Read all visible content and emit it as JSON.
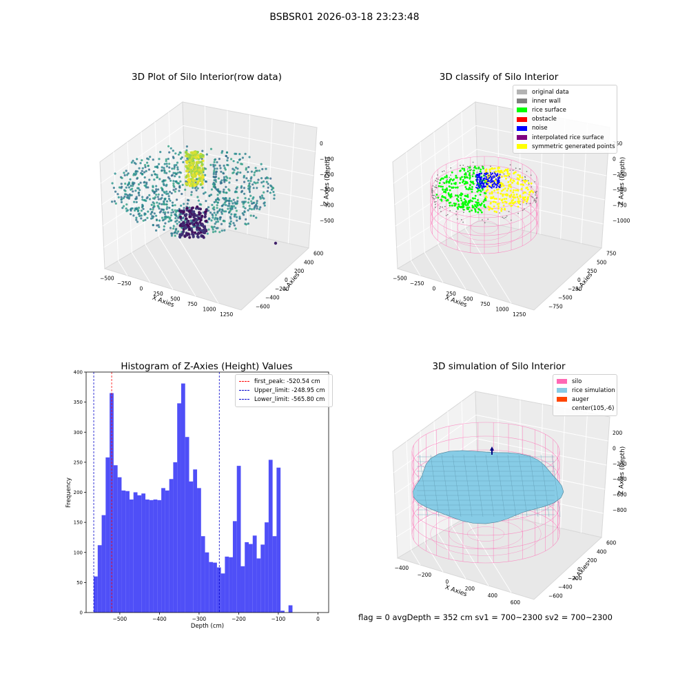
{
  "page": {
    "suptitle": "BSBSR01 2026-03-18 23:23:48",
    "footer": "flag = 0     avgDepth = 352 cm  sv1 = 700~2300  sv2 = 700~2300"
  },
  "colors": {
    "hist_bar": "#4f4ff7",
    "first_peak": "#ff0000",
    "limits": "#0000cc",
    "silo_wire": "#ff69b4",
    "rice": "#87cce6",
    "auger": "#ff4500",
    "pane": "#f2f2f2"
  },
  "chart_data": [
    {
      "type": "scatter3d",
      "title": "3D Plot of Silo Interior(row data)",
      "xlabel": "X Axies",
      "ylabel": "Y Axies",
      "zlabel": "Z Axies (Depth)",
      "x_ticks": [
        "−500",
        "−250",
        "0",
        "250",
        "500",
        "750",
        "1000",
        "1250"
      ],
      "y_ticks": [
        "−600",
        "−400",
        "−200",
        "0",
        "200",
        "400",
        "600"
      ],
      "z_ticks": [
        "−500",
        "−400",
        "−300",
        "−200",
        "−100",
        "0"
      ],
      "colormap": "viridis",
      "note": "point cloud colored by depth"
    },
    {
      "type": "scatter3d",
      "title": "3D classify of Silo Interior",
      "xlabel": "X Axies",
      "ylabel": "Y Axies",
      "zlabel": "Z Axies (Depth)",
      "x_ticks": [
        "−500",
        "−250",
        "0",
        "250",
        "500",
        "750",
        "1000",
        "1250"
      ],
      "y_ticks": [
        "−750",
        "−500",
        "−250",
        "0",
        "250",
        "500",
        "750"
      ],
      "z_ticks": [
        "−1000",
        "−750",
        "−500",
        "−250",
        "0",
        "250"
      ],
      "legend_position": "top-right",
      "legend": [
        {
          "name": "original data",
          "color": "#b3b3b3"
        },
        {
          "name": "inner wall",
          "color": "#808080"
        },
        {
          "name": "rice surface",
          "color": "#00ff00"
        },
        {
          "name": "obstacle",
          "color": "#ff0000"
        },
        {
          "name": "noise",
          "color": "#0000ff"
        },
        {
          "name": "interpolated rice surface",
          "color": "#800080"
        },
        {
          "name": "symmetric generated points",
          "color": "#ffff00"
        }
      ]
    },
    {
      "type": "bar",
      "title": "Histogram of Z-Axies (Height) Values",
      "xlabel": "Depth (cm)",
      "ylabel": "Frequency",
      "xlim": [
        -585,
        27
      ],
      "ylim": [
        0,
        400
      ],
      "x_ticks": [
        -500,
        -400,
        -300,
        -200,
        -100,
        0
      ],
      "y_ticks": [
        0,
        50,
        100,
        150,
        200,
        250,
        300,
        350,
        400
      ],
      "bin_start": -565.8,
      "bin_width": 10.03,
      "values": [
        60,
        112,
        162,
        258,
        365,
        245,
        225,
        203,
        202,
        188,
        200,
        195,
        198,
        188,
        187,
        188,
        187,
        207,
        203,
        222,
        250,
        348,
        381,
        292,
        218,
        238,
        207,
        127,
        100,
        84,
        83,
        75,
        65,
        93,
        92,
        152,
        244,
        77,
        117,
        114,
        128,
        90,
        113,
        150,
        254,
        127,
        241,
        3,
        0,
        12
      ],
      "lines": [
        {
          "label": "first_peak: -520.54 cm",
          "x": -520.54,
          "color": "#ff0000"
        },
        {
          "label": "Upper_limit: -248.95 cm",
          "x": -248.95,
          "color": "#0000cc"
        },
        {
          "label": "Lower_limit: -565.80 cm",
          "x": -565.8,
          "color": "#0000cc"
        }
      ],
      "legend_position": "top-right"
    },
    {
      "type": "surface3d",
      "title": "3D simulation of Silo Interior",
      "xlabel": "X Axies",
      "ylabel": "Y Axies",
      "zlabel": "Z Axies (Depth)",
      "x_ticks": [
        "−400",
        "−200",
        "0",
        "200",
        "400",
        "600"
      ],
      "y_ticks": [
        "−600",
        "−400",
        "−200",
        "0",
        "200",
        "400",
        "600"
      ],
      "z_ticks": [
        "−800",
        "−600",
        "−400",
        "−200",
        "0",
        "200"
      ],
      "legend_position": "top-right",
      "legend": [
        {
          "name": "silo",
          "color": "#ff69b4"
        },
        {
          "name": "rice simulation",
          "color": "#87cce6"
        },
        {
          "name": "auger",
          "color": "#ff4500"
        },
        {
          "name": "center(105,-6)",
          "color": ""
        }
      ]
    }
  ]
}
